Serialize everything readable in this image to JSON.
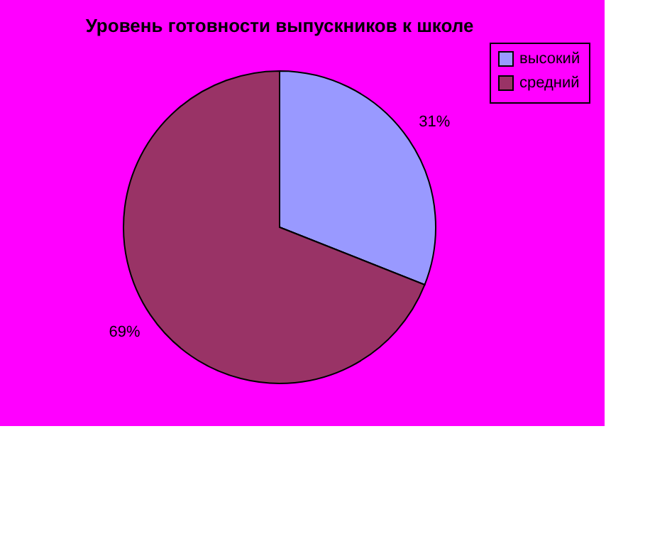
{
  "chart_data": {
    "type": "pie",
    "title": "Уровень готовности выпускников к школе",
    "categories": [
      "высокий",
      "средний"
    ],
    "values": [
      31,
      69
    ],
    "colors": [
      "#9999ff",
      "#993366"
    ],
    "value_labels": [
      "31%",
      "69%"
    ],
    "legend": "right"
  }
}
